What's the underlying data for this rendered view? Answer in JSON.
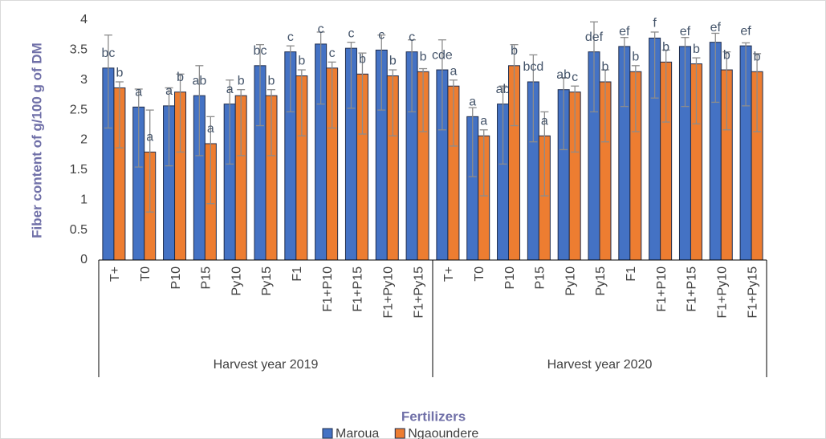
{
  "chart_data": {
    "type": "bar",
    "y_label": "Fiber content of g/100 g of DM",
    "x_label": "Fertilizers",
    "groups": [
      {
        "name": "Harvest year 2019",
        "categories": [
          "T+",
          "T0",
          "P10",
          "P15",
          "Py10",
          "Py15",
          "F1",
          "F1+P10",
          "F1+P15",
          "F1+Py10",
          "F1+Py15"
        ]
      },
      {
        "name": "Harvest year 2020",
        "categories": [
          "T+",
          "T0",
          "P10",
          "P15",
          "Py10",
          "Py15",
          "F1",
          "F1+P10",
          "F1+P15",
          "F1+Py10",
          "F1+Py15"
        ]
      }
    ],
    "series": [
      {
        "name": "Maroua",
        "color": "#4472c4",
        "values": [
          3.2,
          2.55,
          2.57,
          2.74,
          2.6,
          3.24,
          3.47,
          3.6,
          3.53,
          3.5,
          3.47,
          3.17,
          2.39,
          2.6,
          2.97,
          2.84,
          3.47,
          3.56,
          3.7,
          3.56,
          3.63,
          3.57
        ],
        "errors_upper": [
          0.55,
          0.3,
          0.3,
          0.5,
          0.4,
          0.35,
          0.1,
          0.2,
          0.1,
          0.25,
          0.2,
          0.5,
          0.15,
          0.3,
          0.45,
          0.2,
          0.5,
          0.15,
          0.1,
          0.15,
          0.15,
          0.05
        ],
        "errors_lower": [
          1,
          1,
          1,
          1,
          1,
          1,
          1,
          1,
          1,
          1,
          1,
          1,
          1,
          1,
          1,
          1,
          1,
          1,
          1,
          1,
          1,
          1
        ],
        "letters": [
          "bc",
          "a",
          "a",
          "ab",
          "a",
          "bc",
          "c",
          "c",
          "c",
          "c",
          "c",
          "cde",
          "a",
          "ab",
          "bcd",
          "ab",
          "def",
          "ef",
          "f",
          "ef",
          "ef",
          "ef"
        ]
      },
      {
        "name": "Ngaoundere",
        "color": "#ed7d31",
        "values": [
          2.87,
          1.8,
          2.8,
          1.94,
          2.74,
          2.74,
          3.07,
          3.2,
          3.1,
          3.07,
          3.14,
          2.9,
          2.07,
          3.24,
          2.07,
          2.8,
          2.97,
          3.14,
          3.3,
          3.27,
          3.17,
          3.14
        ],
        "errors_upper": [
          0.1,
          0.7,
          0.3,
          0.45,
          0.1,
          0.1,
          0.1,
          0.1,
          0.35,
          0.1,
          0.05,
          0.1,
          0.1,
          0.35,
          0.4,
          0.1,
          0.2,
          0.1,
          0.2,
          0.1,
          0.3,
          0.3
        ],
        "errors_lower": [
          1,
          1,
          1,
          1,
          1,
          1,
          1,
          1,
          1,
          1,
          1,
          1,
          1,
          1,
          1,
          1,
          1,
          1,
          1,
          1,
          1,
          1
        ],
        "letters": [
          "b",
          "a",
          "b",
          "a",
          "b",
          "b",
          "b",
          "c",
          "b",
          "b",
          "b",
          "a",
          "a",
          "b",
          "a",
          "c",
          "b",
          "b",
          "b",
          "b",
          "b",
          "b"
        ]
      }
    ],
    "ylim": [
      0,
      4
    ],
    "yticks": [
      0,
      0.5,
      1,
      1.5,
      2,
      2.5,
      3,
      3.5,
      4
    ],
    "legend": "bottom"
  }
}
